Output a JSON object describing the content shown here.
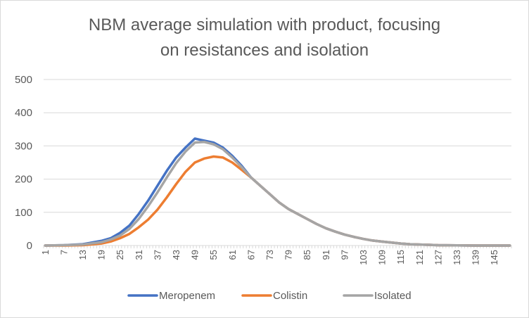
{
  "chart_data": {
    "type": "line",
    "title_line1": "NBM average simulation with product, focusing",
    "title_line2": "on resistances and isolation",
    "xlabel": "",
    "ylabel": "",
    "ylim": [
      0,
      500
    ],
    "y_ticks": [
      "0",
      "100",
      "200",
      "300",
      "400",
      "500"
    ],
    "x_count": 150,
    "x_ticks": [
      "1",
      "7",
      "13",
      "19",
      "25",
      "31",
      "37",
      "43",
      "49",
      "55",
      "61",
      "67",
      "73",
      "79",
      "85",
      "91",
      "97",
      "103",
      "109",
      "115",
      "121",
      "127",
      "133",
      "139",
      "145"
    ],
    "grid": "horizontal",
    "legend_position": "bottom",
    "colors": {
      "Meropenem": "#4472c4",
      "Colistin": "#ed7d31",
      "Isolated": "#a5a5a5"
    },
    "series": [
      {
        "name": "Meropenem",
        "points": [
          [
            1,
            0
          ],
          [
            7,
            1
          ],
          [
            13,
            4
          ],
          [
            19,
            14
          ],
          [
            22,
            22
          ],
          [
            25,
            38
          ],
          [
            28,
            60
          ],
          [
            31,
            95
          ],
          [
            34,
            135
          ],
          [
            37,
            180
          ],
          [
            40,
            225
          ],
          [
            43,
            265
          ],
          [
            46,
            295
          ],
          [
            49,
            322
          ],
          [
            51,
            318
          ],
          [
            55,
            310
          ],
          [
            58,
            295
          ],
          [
            61,
            270
          ],
          [
            64,
            240
          ],
          [
            67,
            205
          ],
          [
            70,
            180
          ],
          [
            73,
            155
          ],
          [
            76,
            130
          ],
          [
            79,
            110
          ],
          [
            82,
            95
          ],
          [
            85,
            80
          ],
          [
            88,
            65
          ],
          [
            91,
            52
          ],
          [
            94,
            42
          ],
          [
            97,
            33
          ],
          [
            100,
            26
          ],
          [
            103,
            20
          ],
          [
            106,
            15
          ],
          [
            109,
            12
          ],
          [
            112,
            9
          ],
          [
            115,
            6
          ],
          [
            118,
            4
          ],
          [
            121,
            3
          ],
          [
            124,
            2
          ],
          [
            127,
            1
          ],
          [
            133,
            0.5
          ],
          [
            139,
            0
          ],
          [
            150,
            0
          ]
        ]
      },
      {
        "name": "Colistin",
        "points": [
          [
            1,
            0
          ],
          [
            7,
            0
          ],
          [
            13,
            1
          ],
          [
            19,
            6
          ],
          [
            22,
            12
          ],
          [
            25,
            22
          ],
          [
            28,
            35
          ],
          [
            31,
            55
          ],
          [
            34,
            78
          ],
          [
            37,
            108
          ],
          [
            40,
            145
          ],
          [
            43,
            185
          ],
          [
            46,
            222
          ],
          [
            49,
            250
          ],
          [
            52,
            262
          ],
          [
            55,
            268
          ],
          [
            58,
            265
          ],
          [
            61,
            250
          ],
          [
            64,
            228
          ],
          [
            67,
            205
          ],
          [
            70,
            180
          ],
          [
            73,
            155
          ],
          [
            76,
            130
          ],
          [
            79,
            110
          ],
          [
            82,
            95
          ],
          [
            85,
            80
          ],
          [
            88,
            65
          ],
          [
            91,
            52
          ],
          [
            94,
            42
          ],
          [
            97,
            33
          ],
          [
            100,
            26
          ],
          [
            103,
            20
          ],
          [
            106,
            15
          ],
          [
            109,
            12
          ],
          [
            112,
            9
          ],
          [
            115,
            6
          ],
          [
            118,
            4
          ],
          [
            121,
            3
          ],
          [
            124,
            2
          ],
          [
            127,
            1
          ],
          [
            133,
            0.5
          ],
          [
            139,
            0
          ],
          [
            150,
            0
          ]
        ]
      },
      {
        "name": "Isolated",
        "points": [
          [
            1,
            0
          ],
          [
            7,
            1
          ],
          [
            13,
            3
          ],
          [
            19,
            10
          ],
          [
            22,
            18
          ],
          [
            25,
            30
          ],
          [
            28,
            50
          ],
          [
            31,
            80
          ],
          [
            34,
            118
          ],
          [
            37,
            160
          ],
          [
            40,
            205
          ],
          [
            43,
            248
          ],
          [
            46,
            283
          ],
          [
            49,
            310
          ],
          [
            52,
            312
          ],
          [
            55,
            305
          ],
          [
            58,
            290
          ],
          [
            61,
            265
          ],
          [
            64,
            236
          ],
          [
            67,
            205
          ],
          [
            70,
            180
          ],
          [
            73,
            155
          ],
          [
            76,
            130
          ],
          [
            79,
            110
          ],
          [
            82,
            95
          ],
          [
            85,
            80
          ],
          [
            88,
            65
          ],
          [
            91,
            52
          ],
          [
            94,
            42
          ],
          [
            97,
            33
          ],
          [
            100,
            26
          ],
          [
            103,
            20
          ],
          [
            106,
            15
          ],
          [
            109,
            12
          ],
          [
            112,
            9
          ],
          [
            115,
            6
          ],
          [
            118,
            4
          ],
          [
            121,
            3
          ],
          [
            124,
            2
          ],
          [
            127,
            1
          ],
          [
            133,
            0.5
          ],
          [
            139,
            0
          ],
          [
            150,
            0
          ]
        ]
      }
    ]
  }
}
